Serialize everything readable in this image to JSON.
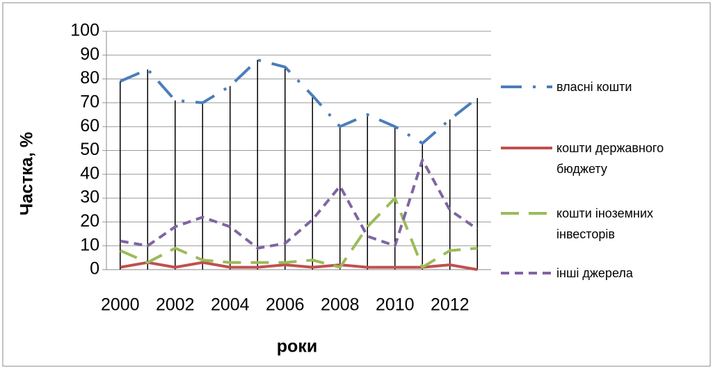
{
  "chart_data": {
    "type": "line",
    "categories": [
      "2000",
      null,
      "2002",
      null,
      "2004",
      null,
      "2006",
      null,
      "2008",
      null,
      "2010",
      null,
      "2012",
      null
    ],
    "series": [
      {
        "name": "власні кошти",
        "color": "#4a7ebb",
        "dash": "dashdot",
        "values": [
          79,
          84,
          71,
          70,
          77,
          88,
          85,
          73,
          60,
          65,
          60,
          53,
          63,
          72
        ]
      },
      {
        "name": "кошти державного бюджету",
        "color": "#c0504d",
        "dash": "solid",
        "values": [
          1,
          3,
          1,
          3,
          1,
          1,
          2,
          1,
          2,
          1,
          1,
          1,
          2,
          0
        ]
      },
      {
        "name": "кошти іноземних інвесторів",
        "color": "#9bbb59",
        "dash": "dash",
        "values": [
          8,
          3,
          9,
          4,
          3,
          3,
          3,
          4,
          1,
          18,
          30,
          1,
          8,
          9
        ]
      },
      {
        "name": "інші джерела",
        "color": "#8064a2",
        "dash": "shortdash",
        "values": [
          12,
          10,
          18,
          22,
          18,
          9,
          11,
          21,
          35,
          14,
          10,
          46,
          25,
          17
        ]
      }
    ],
    "drop_lines": true,
    "ylim": [
      0,
      100
    ],
    "yticks": [
      0,
      10,
      20,
      30,
      40,
      50,
      60,
      70,
      80,
      90,
      100
    ],
    "grid": true,
    "ylabel": "Частка, %",
    "xlabel": "роки",
    "legend": "right"
  }
}
